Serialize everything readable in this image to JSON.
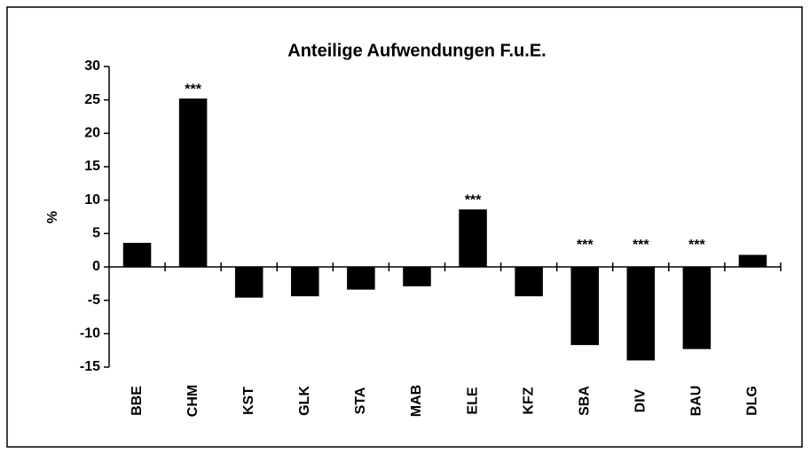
{
  "chart_data": {
    "type": "bar",
    "title": "Anteilige Aufwendungen F.u.E.",
    "y_label": "%",
    "categories": [
      "BBE",
      "CHM",
      "KST",
      "GLK",
      "STA",
      "MAB",
      "ELE",
      "KFZ",
      "SBA",
      "DIV",
      "BAU",
      "DLG"
    ],
    "values": [
      3.6,
      25.2,
      -4.6,
      -4.4,
      -3.4,
      -2.9,
      8.6,
      -4.4,
      -11.7,
      -14.0,
      -12.3,
      1.8
    ],
    "annotations": [
      null,
      "***",
      null,
      null,
      null,
      null,
      "***",
      null,
      "***",
      "***",
      "***",
      null
    ],
    "color": "#000000",
    "ylim": [
      -15,
      30
    ],
    "yticks": [
      -15,
      -10,
      -5,
      0,
      5,
      10,
      15,
      20,
      25,
      30
    ],
    "grid": false
  }
}
